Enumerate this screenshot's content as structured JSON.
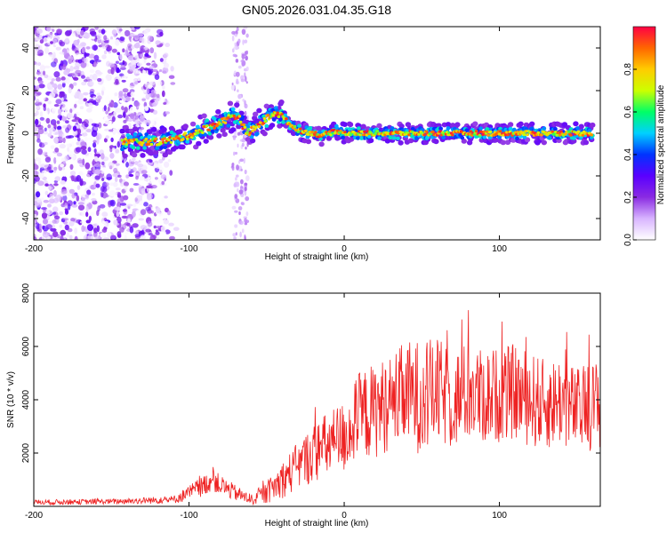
{
  "figure_title": "GN05.2026.031.04.35.G18",
  "colors": {
    "snr_line": "#ee2222",
    "axis": "#000000",
    "colormap": [
      "#ffffff",
      "#d8b4ff",
      "#8a2be2",
      "#5a00ff",
      "#0033ff",
      "#00d0ff",
      "#00ff66",
      "#ccff00",
      "#ffcc00",
      "#ff6600",
      "#ff0044"
    ]
  },
  "chart_data": [
    {
      "type": "heatmap",
      "title": "",
      "xlabel": "Height of straight line (km)",
      "ylabel": "Frequency (Hz)",
      "xlim": [
        -200,
        165
      ],
      "ylim": [
        -50,
        50
      ],
      "xticks": [
        -200,
        -100,
        0,
        100
      ],
      "xtick_labels": [
        "-200",
        "-100",
        "0",
        "100"
      ],
      "yticks": [
        -40,
        -20,
        0,
        20,
        40
      ],
      "ytick_labels": [
        "-40",
        "-20",
        "0",
        "20",
        "40"
      ],
      "ridge": {
        "x": [
          -143,
          -120,
          -110,
          -100,
          -90,
          -80,
          -72,
          -68,
          -63,
          -58,
          -53,
          -48,
          -45,
          -40,
          -35,
          -28,
          -20,
          -15,
          -10,
          -5,
          0,
          20,
          60,
          100,
          130,
          160
        ],
        "y": [
          -4,
          -4,
          -3,
          -1,
          2,
          5,
          8,
          8,
          0,
          2,
          5,
          8,
          10,
          8,
          4,
          1,
          0,
          -1,
          0,
          1,
          0,
          0,
          0,
          0,
          0,
          0
        ]
      },
      "noise_region_x": [
        -200,
        -112
      ],
      "noise_stripe_x": [
        -72,
        -62
      ],
      "colorbar": {
        "label": "Normalized spectral amplitude",
        "range": [
          0,
          1
        ],
        "ticks": [
          0,
          0.2,
          0.4,
          0.6,
          0.8
        ],
        "tick_labels": [
          "0.0",
          "0.2",
          "0.4",
          "0.6",
          "0.8"
        ]
      }
    },
    {
      "type": "line",
      "title": "",
      "xlabel": "Height of straight line (km)",
      "ylabel": "SNR (10 * v/v)",
      "xlim": [
        -200,
        165
      ],
      "ylim": [
        0,
        8000
      ],
      "xticks": [
        -200,
        -100,
        0,
        100
      ],
      "xtick_labels": [
        "-200",
        "-100",
        "0",
        "100"
      ],
      "yticks": [
        2000,
        4000,
        6000,
        8000
      ],
      "ytick_labels": [
        "2000",
        "4000",
        "6000",
        "8000"
      ],
      "envelope": {
        "x": [
          -200,
          -150,
          -110,
          -100,
          -90,
          -85,
          -80,
          -70,
          -60,
          -50,
          -40,
          -30,
          -20,
          -10,
          0,
          10,
          20,
          30,
          40,
          50,
          60,
          70,
          80,
          90,
          100,
          110,
          120,
          130,
          140,
          150,
          160,
          165
        ],
        "mean": [
          150,
          180,
          250,
          500,
          800,
          1000,
          800,
          500,
          250,
          500,
          1000,
          1500,
          2000,
          2300,
          2600,
          3400,
          3600,
          3900,
          4200,
          4100,
          4300,
          4000,
          4300,
          4100,
          4200,
          4300,
          4000,
          3800,
          4000,
          3600,
          3800,
          3800
        ],
        "spread": [
          100,
          100,
          150,
          300,
          400,
          400,
          400,
          300,
          200,
          400,
          700,
          900,
          1100,
          1300,
          1400,
          1700,
          1800,
          1800,
          2000,
          2200,
          2000,
          1900,
          1900,
          1800,
          1800,
          1800,
          1800,
          1700,
          1700,
          1600,
          1700,
          1700
        ]
      }
    }
  ]
}
